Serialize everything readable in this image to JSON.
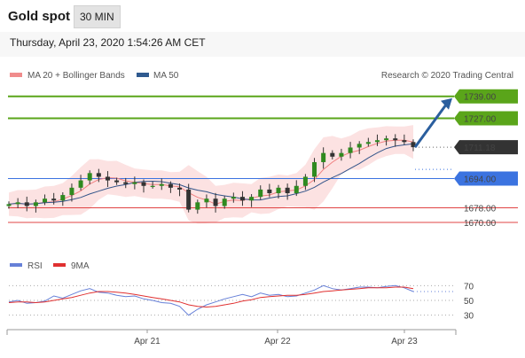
{
  "header": {
    "title": "Gold spot",
    "interval": "30 MIN"
  },
  "timestamp": "Thursday, April 23, 2020 1:54:26 AM CET",
  "legend": {
    "ma20": "MA 20 + Bollinger Bands",
    "ma50": "MA 50",
    "credit": "Research © 2020 Trading Central"
  },
  "rsi_legend": {
    "rsi": "RSI",
    "ma9": "9MA"
  },
  "colors": {
    "resistance": "#5aa51a",
    "support": "#3b73e0",
    "support_red": "#e04444",
    "current": "#333333",
    "arrow": "#2a5e9e",
    "ma20_band": "#f6a4a4",
    "ma50": "#33558a",
    "rsi": "#6680d8",
    "rsi_ma": "#e03030"
  },
  "chart_data": [
    {
      "type": "candlestick",
      "y_range": [
        1654,
        1751
      ],
      "x_axis_labels": [
        "Apr 21",
        "Apr 22",
        "Apr 23"
      ],
      "levels": [
        {
          "value": 1739.0,
          "label": "1739.00",
          "kind": "resistance"
        },
        {
          "value": 1727.0,
          "label": "1727.00",
          "kind": "resistance"
        },
        {
          "value": 1711.18,
          "label": "1711.18",
          "kind": "current"
        },
        {
          "value": 1694.0,
          "label": "1694.00",
          "kind": "pivot"
        },
        {
          "value": 1678.0,
          "label": "1678.00",
          "kind": "support"
        },
        {
          "value": 1670.0,
          "label": "1670.00",
          "kind": "support"
        }
      ],
      "series": [
        {
          "name": "MA 20 + Bollinger Bands"
        },
        {
          "name": "MA 50"
        }
      ],
      "candles_close": [
        1680,
        1681,
        1679,
        1681,
        1683,
        1682,
        1685,
        1689,
        1693,
        1697,
        1695,
        1693,
        1692,
        1691,
        1692,
        1690,
        1690,
        1691,
        1689,
        1688,
        1677,
        1681,
        1683,
        1679,
        1683,
        1684,
        1682,
        1684,
        1688,
        1686,
        1689,
        1686,
        1690,
        1695,
        1703,
        1708,
        1706,
        1708,
        1711,
        1713,
        1714,
        1715,
        1716,
        1715,
        1714,
        1711.18
      ]
    },
    {
      "type": "line",
      "name": "RSI",
      "y_ticks": [
        30,
        50,
        70
      ],
      "y_range": [
        20,
        80
      ],
      "series": [
        {
          "name": "RSI",
          "values": [
            48,
            50,
            46,
            47,
            49,
            56,
            53,
            58,
            63,
            66,
            61,
            60,
            57,
            55,
            56,
            52,
            50,
            47,
            46,
            42,
            30,
            38,
            44,
            48,
            52,
            55,
            58,
            55,
            60,
            57,
            58,
            55,
            56,
            60,
            64,
            70,
            66,
            64,
            66,
            68,
            68,
            67,
            69,
            70,
            67,
            62
          ]
        },
        {
          "name": "9MA",
          "values": [
            47,
            48,
            48,
            47,
            48,
            50,
            52,
            54,
            57,
            60,
            62,
            62,
            61,
            60,
            58,
            56,
            54,
            52,
            50,
            48,
            44,
            42,
            41,
            42,
            44,
            46,
            49,
            51,
            54,
            55,
            56,
            57,
            57,
            58,
            60,
            62,
            63,
            64,
            65,
            66,
            67,
            67,
            67,
            68,
            68,
            66
          ]
        }
      ]
    }
  ]
}
